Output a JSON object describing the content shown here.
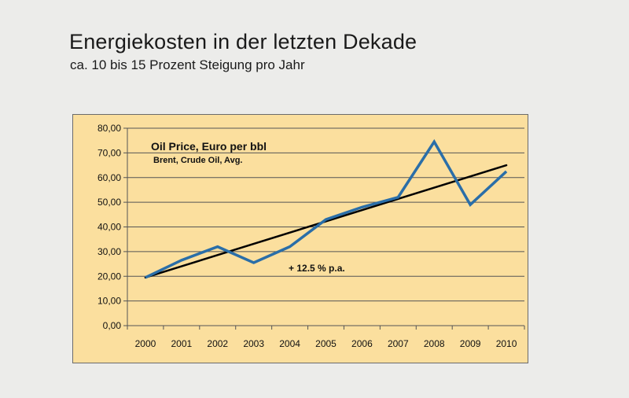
{
  "header": {
    "title": "Energiekosten in der letzten Dekade",
    "subtitle": "ca. 10 bis 15 Prozent Steigung pro Jahr"
  },
  "colors": {
    "background": "#ececea",
    "plot_background": "#fbdf9e",
    "series_line": "#2a6ea8",
    "trend_line": "#000000",
    "grid": "#555555"
  },
  "chart_data": {
    "type": "line",
    "title": "Oil Price, Euro per bbl",
    "subtitle": "Brent, Crude Oil, Avg.",
    "xlabel": "",
    "ylabel": "",
    "ylim": [
      0,
      80
    ],
    "yticks": [
      0,
      10,
      20,
      30,
      40,
      50,
      60,
      70,
      80
    ],
    "ytick_labels": [
      "0,00",
      "10,00",
      "20,00",
      "30,00",
      "40,00",
      "50,00",
      "60,00",
      "70,00",
      "80,00"
    ],
    "categories": [
      "2000",
      "2001",
      "2002",
      "2003",
      "2004",
      "2005",
      "2006",
      "2007",
      "2008",
      "2009",
      "2010"
    ],
    "grid": true,
    "series": [
      {
        "name": "Oil Price, Euro per bbl",
        "values": [
          19.5,
          26.5,
          32,
          25.5,
          32,
          43,
          48,
          52,
          74.5,
          49,
          62.5
        ]
      },
      {
        "name": "Trend",
        "values_start_end": [
          19.5,
          65
        ]
      }
    ],
    "annotations": [
      {
        "text": "+ 12.5 % p.a."
      }
    ]
  }
}
